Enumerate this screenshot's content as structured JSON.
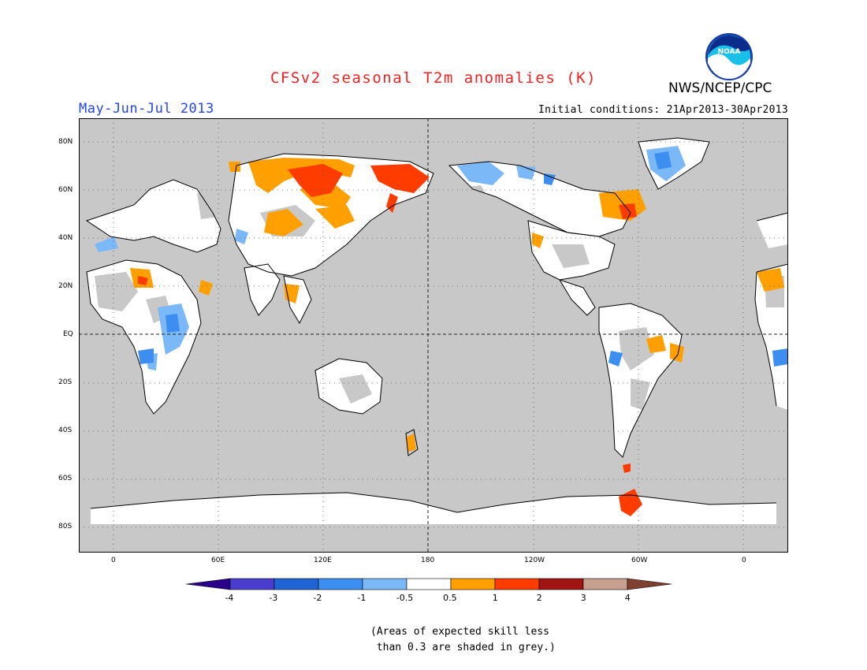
{
  "header": {
    "title": "CFSv2 seasonal T2m anomalies (K)",
    "title_color": "#ee2222",
    "period": "May-Jun-Jul 2013",
    "period_color": "#2244ee",
    "initial_conditions": "Initial conditions: 21Apr2013-30Apr2013",
    "agency": "NWS/NCEP/CPC",
    "logo_text": "NOAA"
  },
  "map": {
    "lat_labels": [
      "80N",
      "60N",
      "40N",
      "20N",
      "EQ",
      "20S",
      "40S",
      "60S",
      "80S"
    ],
    "lon_labels": [
      "0",
      "60E",
      "120E",
      "180",
      "120W",
      "60W",
      "0"
    ],
    "background_color": "#c8c8c8",
    "land_white_color": "#ffffff"
  },
  "colorbar": {
    "labels": [
      "-4",
      "-3",
      "-2",
      "-1",
      "-0.5",
      "0.5",
      "1",
      "2",
      "3",
      "4"
    ],
    "colors": [
      "#2a008a",
      "#4a3ccc",
      "#1f64d4",
      "#3c8ef0",
      "#7ab8f8",
      "#ffffff",
      "#ffa000",
      "#ff3c00",
      "#a01414",
      "#c8a090",
      "#804030"
    ]
  },
  "note": {
    "line1": "(Areas of expected skill less",
    "line2": " than 0.3 are shaded in grey.)"
  }
}
